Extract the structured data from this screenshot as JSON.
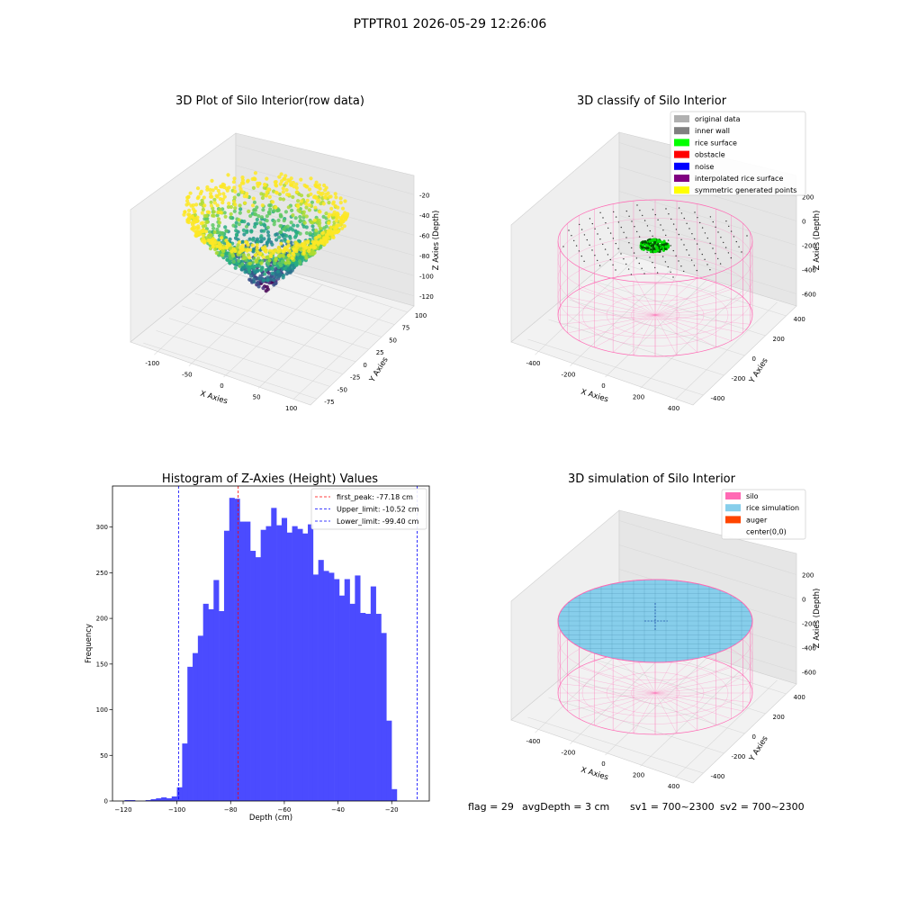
{
  "suptitle": "PTPTR01 2026-05-29 12:26:06",
  "chart_data": [
    {
      "type": "scatter",
      "title": "3D Plot of Silo Interior(row data)",
      "xlabel": "X Axies",
      "ylabel": "Y Axies",
      "zlabel": "Z Axies (Depth)",
      "x_ticks": [
        "-100",
        "-50",
        "0",
        "50",
        "100"
      ],
      "y_ticks": [
        "-75",
        "-50",
        "-25",
        "0",
        "25",
        "50",
        "75",
        "100"
      ],
      "z_ticks": [
        "-20",
        "-40",
        "-60",
        "-80",
        "-100",
        "-120"
      ],
      "xlim": [
        -120,
        110
      ],
      "ylim": [
        -85,
        105
      ],
      "zlim": [
        -130,
        -10
      ],
      "colormap": "viridis",
      "description": "bowl-shaped point cloud of silo depth points, deepest near center"
    },
    {
      "type": "scatter",
      "title": "3D classify of Silo Interior",
      "xlabel": "X Axies",
      "ylabel": "Y Axies",
      "zlabel": "Z Axies (Depth)",
      "x_ticks": [
        "-400",
        "-200",
        "0",
        "200",
        "400"
      ],
      "y_ticks": [
        "-400",
        "-200",
        "0",
        "200",
        "400"
      ],
      "z_ticks": [
        "200",
        "0",
        "-200",
        "-400",
        "-600"
      ],
      "legend": [
        {
          "label": "original data",
          "color": "#b0b0b0"
        },
        {
          "label": "inner wall",
          "color": "#808080"
        },
        {
          "label": "rice surface",
          "color": "#00ff00"
        },
        {
          "label": "obstacle",
          "color": "#ff0000"
        },
        {
          "label": "noise",
          "color": "#0000ff"
        },
        {
          "label": "interpolated rice surface",
          "color": "#800080"
        },
        {
          "label": "symmetric generated points",
          "color": "#ffff00"
        }
      ],
      "legend_position": "upper right"
    },
    {
      "type": "bar",
      "title": "Histogram of Z-Axies (Height) Values",
      "xlabel": "Depth (cm)",
      "ylabel": "Frequency",
      "x_ticks": [
        -120,
        -100,
        -80,
        -60,
        -40,
        -20
      ],
      "y_ticks": [
        0,
        50,
        100,
        150,
        200,
        250,
        300
      ],
      "xlim": [
        -124,
        -6
      ],
      "ylim": [
        0,
        345
      ],
      "bin_edges_start": -119.5,
      "bin_width": 1.95,
      "values": [
        1,
        1,
        0,
        0,
        1,
        2,
        3,
        4,
        3,
        5,
        15,
        63,
        147,
        162,
        181,
        216,
        210,
        242,
        208,
        296,
        332,
        331,
        306,
        306,
        274,
        267,
        297,
        301,
        321,
        302,
        310,
        294,
        301,
        298,
        293,
        303,
        248,
        264,
        252,
        250,
        243,
        225,
        243,
        216,
        247,
        206,
        205,
        235,
        205,
        184,
        88,
        13
      ],
      "lines": [
        {
          "label": "first_peak: -77.18 cm",
          "x": -77.18,
          "color": "#ff0000"
        },
        {
          "label": "Upper_limit: -10.52 cm",
          "x": -10.52,
          "color": "#0000ff"
        },
        {
          "label": "Lower_limit: -99.40 cm",
          "x": -99.4,
          "color": "#0000ff"
        }
      ],
      "bar_color": "#4b4bff",
      "legend_position": "upper right"
    },
    {
      "type": "scatter",
      "title": "3D simulation of Silo Interior",
      "xlabel": "X Axies",
      "ylabel": "Y Axies",
      "zlabel": "Z Axies (Depth)",
      "x_ticks": [
        "-400",
        "-200",
        "0",
        "200",
        "400"
      ],
      "y_ticks": [
        "-400",
        "-200",
        "0",
        "200",
        "400"
      ],
      "z_ticks": [
        "200",
        "0",
        "-200",
        "-400",
        "-600"
      ],
      "legend": [
        {
          "label": "silo",
          "color": "#ff69b4"
        },
        {
          "label": "rice simulation",
          "color": "#87ceeb"
        },
        {
          "label": "auger",
          "color": "#ff4500"
        },
        {
          "label": "center(0,0)",
          "color": "#ffffff"
        }
      ],
      "legend_position": "upper right"
    }
  ],
  "bottom": {
    "flag": "flag = 29",
    "avgdepth": "avgDepth = 3 cm",
    "sv1": "sv1 = 700~2300",
    "sv2": "sv2 = 700~2300"
  }
}
